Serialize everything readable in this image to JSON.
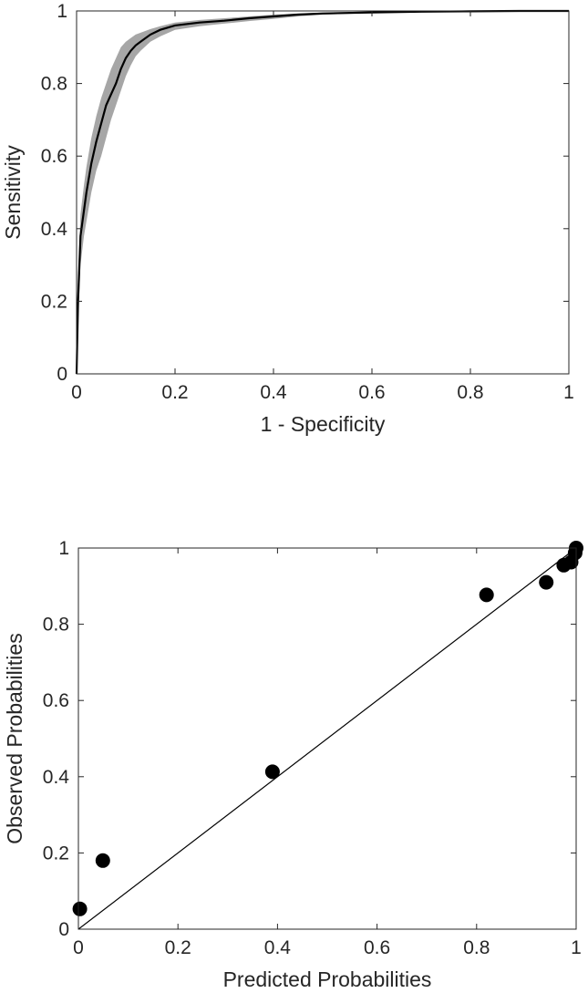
{
  "chart_data": [
    {
      "type": "line",
      "title": "",
      "xlabel": "1 - Specificity",
      "ylabel": "Sensitivity",
      "xlim": [
        0,
        1
      ],
      "ylim": [
        0,
        1
      ],
      "xticks": [
        "0",
        "0.2",
        "0.4",
        "0.6",
        "0.8",
        "1"
      ],
      "yticks": [
        "0",
        "0.2",
        "0.4",
        "0.6",
        "0.8",
        "1"
      ],
      "grid": false,
      "legend": "none",
      "series": [
        {
          "role": "mean",
          "color": "#000000",
          "x": [
            0,
            0.003,
            0.008,
            0.015,
            0.02,
            0.03,
            0.04,
            0.05,
            0.06,
            0.07,
            0.08,
            0.09,
            0.1,
            0.11,
            0.12,
            0.13,
            0.15,
            0.17,
            0.2,
            0.25,
            0.3,
            0.35,
            0.4,
            0.45,
            0.5,
            0.6,
            0.7,
            0.8,
            0.9,
            1.0
          ],
          "y": [
            0,
            0.2,
            0.38,
            0.45,
            0.5,
            0.58,
            0.64,
            0.69,
            0.74,
            0.77,
            0.8,
            0.84,
            0.87,
            0.89,
            0.905,
            0.915,
            0.935,
            0.948,
            0.96,
            0.968,
            0.973,
            0.98,
            0.985,
            0.99,
            0.993,
            0.996,
            0.998,
            0.999,
            1.0,
            1.0
          ]
        },
        {
          "role": "confidence-band",
          "color": "#a6a6a6",
          "x": [
            0,
            0.003,
            0.008,
            0.015,
            0.02,
            0.03,
            0.04,
            0.05,
            0.06,
            0.07,
            0.08,
            0.09,
            0.1,
            0.11,
            0.12,
            0.13,
            0.15,
            0.17,
            0.2,
            0.25,
            0.3,
            0.35,
            0.4,
            0.45,
            0.5,
            0.6,
            0.7,
            0.8,
            0.9,
            1.0
          ],
          "upper": [
            0.03,
            0.26,
            0.44,
            0.52,
            0.57,
            0.65,
            0.71,
            0.76,
            0.8,
            0.84,
            0.87,
            0.9,
            0.915,
            0.925,
            0.935,
            0.94,
            0.95,
            0.958,
            0.968,
            0.975,
            0.98,
            0.985,
            0.99,
            0.993,
            0.996,
            0.998,
            1.0,
            1.0,
            1.0,
            1.0
          ],
          "lower": [
            0,
            0.13,
            0.3,
            0.38,
            0.42,
            0.5,
            0.56,
            0.6,
            0.65,
            0.7,
            0.74,
            0.78,
            0.82,
            0.85,
            0.875,
            0.89,
            0.915,
            0.93,
            0.948,
            0.958,
            0.965,
            0.972,
            0.978,
            0.985,
            0.99,
            0.994,
            0.997,
            0.998,
            1.0,
            1.0
          ]
        }
      ]
    },
    {
      "type": "scatter",
      "title": "",
      "xlabel": "Predicted Probabilities",
      "ylabel": "Observed Probabilities",
      "xlim": [
        0,
        1
      ],
      "ylim": [
        0,
        1
      ],
      "xticks": [
        "0",
        "0.2",
        "0.4",
        "0.6",
        "0.8",
        "1"
      ],
      "yticks": [
        "0",
        "0.2",
        "0.4",
        "0.6",
        "0.8",
        "1"
      ],
      "grid": false,
      "legend": "none",
      "reference_line": {
        "x": [
          0,
          1
        ],
        "y": [
          0,
          1
        ],
        "color": "#000000"
      },
      "series": [
        {
          "color": "#000000",
          "x": [
            0.003,
            0.049,
            0.39,
            0.82,
            0.94,
            0.975,
            0.99,
            0.998,
            1.0
          ],
          "y": [
            0.053,
            0.18,
            0.413,
            0.877,
            0.91,
            0.955,
            0.963,
            0.987,
            1.0
          ]
        }
      ]
    }
  ]
}
